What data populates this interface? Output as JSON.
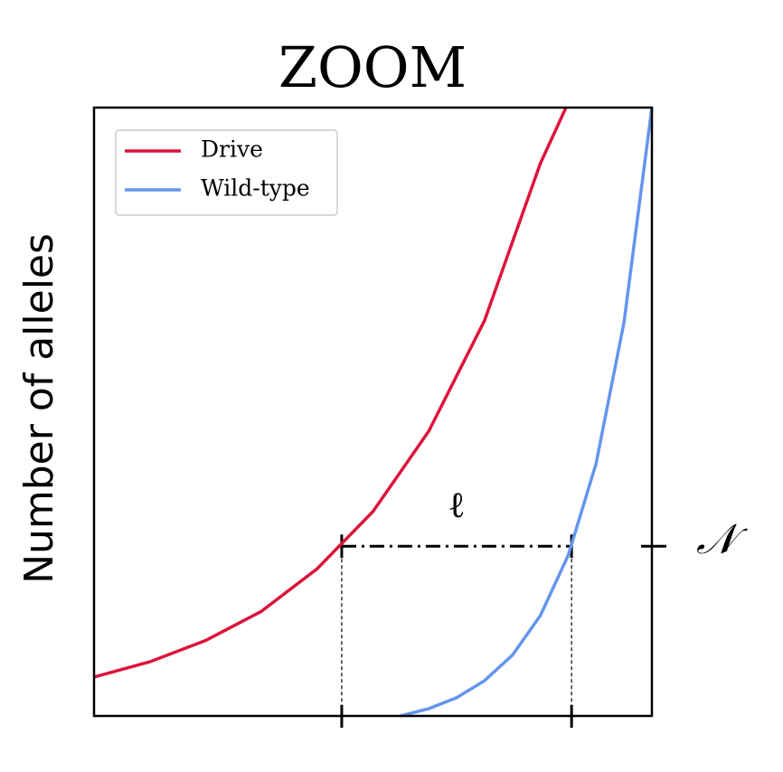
{
  "chart_data": {
    "type": "line",
    "title": "ZOOM",
    "y_label": "Number of alleles",
    "xlim": [
      0,
      100
    ],
    "ylim": [
      0,
      100
    ],
    "series": [
      {
        "name": "Drive",
        "color": "#dc143c",
        "x": [
          0,
          10,
          20,
          30,
          40,
          50,
          60,
          70,
          80,
          84.6
        ],
        "values": [
          6.4,
          8.9,
          12.4,
          17.2,
          24.2,
          33.6,
          46.8,
          65.0,
          90.8,
          100
        ]
      },
      {
        "name": "Wild-type",
        "color": "#6495ed",
        "x": [
          54.9,
          60,
          65,
          70,
          75,
          80,
          85,
          90,
          95,
          100
        ],
        "values": [
          0,
          1.2,
          3.0,
          5.8,
          10.0,
          16.5,
          26.4,
          41.5,
          64.7,
          100
        ]
      }
    ],
    "markers_x": [
      44.4,
      85.6
    ],
    "level": 27.9,
    "length_label": "ℓ",
    "level_label": "𝒩",
    "legend": "upper left"
  }
}
